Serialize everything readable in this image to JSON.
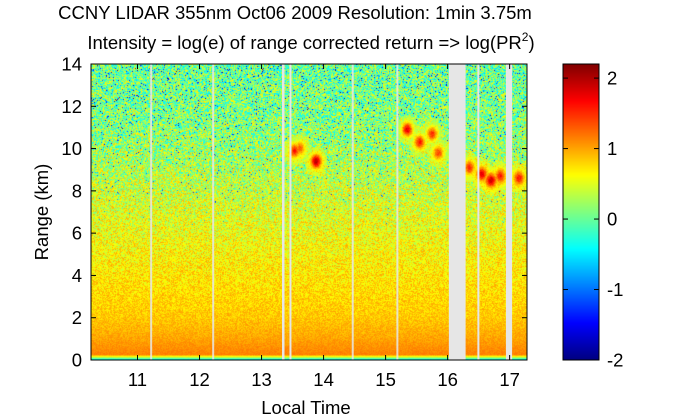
{
  "chart_data": {
    "type": "heatmap",
    "title_line1": "CCNY LIDAR 355nm Oct06 2009 Resolution: 1min 3.75m",
    "title_line2": {
      "prefix": "Intensity = log(e) of range corrected return => log(PR",
      "superscript": "2",
      "suffix": ")"
    },
    "xlabel": "Local Time",
    "ylabel": "Range (km)",
    "xlim": [
      10.25,
      17.28
    ],
    "ylim": [
      0,
      14
    ],
    "xticks": [
      11,
      12,
      13,
      14,
      15,
      16,
      17
    ],
    "yticks": [
      0,
      2,
      4,
      6,
      8,
      10,
      12,
      14
    ],
    "colorbar": {
      "min": -2,
      "max": 2.2,
      "ticks": [
        2,
        1,
        0,
        -1,
        -2
      ],
      "colormap": "jet"
    },
    "data_gaps_hours": [
      [
        13.33,
        13.37
      ],
      [
        13.45,
        13.48
      ],
      [
        16.02,
        16.29
      ],
      [
        16.48,
        16.51
      ],
      [
        16.94,
        17.04
      ]
    ],
    "thin_gaps_hours": [
      11.22,
      12.22,
      14.47,
      15.19
    ],
    "profile_log_intensity_vs_range_km": [
      {
        "range": 0.0,
        "value": -0.6
      },
      {
        "range": 0.05,
        "value": -0.2
      },
      {
        "range": 0.1,
        "value": 0.2
      },
      {
        "range": 0.25,
        "value": 1.15
      },
      {
        "range": 1.0,
        "value": 1.0
      },
      {
        "range": 2.0,
        "value": 0.85
      },
      {
        "range": 4.0,
        "value": 0.72
      },
      {
        "range": 6.0,
        "value": 0.58
      },
      {
        "range": 8.0,
        "value": 0.42
      },
      {
        "range": 10.0,
        "value": 0.22
      },
      {
        "range": 12.0,
        "value": 0.1
      },
      {
        "range": 14.0,
        "value": 0.05
      }
    ],
    "cloud_features": [
      {
        "time": 13.53,
        "range": 9.9,
        "value": 1.6
      },
      {
        "time": 13.62,
        "range": 10.0,
        "value": 1.3
      },
      {
        "time": 13.88,
        "range": 9.4,
        "value": 2.0
      },
      {
        "time": 15.35,
        "range": 10.9,
        "value": 1.8
      },
      {
        "time": 15.55,
        "range": 10.3,
        "value": 1.6
      },
      {
        "time": 15.75,
        "range": 10.7,
        "value": 1.5
      },
      {
        "time": 15.85,
        "range": 9.8,
        "value": 1.4
      },
      {
        "time": 16.35,
        "range": 9.1,
        "value": 1.5
      },
      {
        "time": 16.55,
        "range": 8.8,
        "value": 1.8
      },
      {
        "time": 16.7,
        "range": 8.5,
        "value": 1.9
      },
      {
        "time": 16.85,
        "range": 8.7,
        "value": 1.6
      },
      {
        "time": 17.15,
        "range": 8.6,
        "value": 1.6
      }
    ],
    "gap_color": "#e6e6e6"
  }
}
